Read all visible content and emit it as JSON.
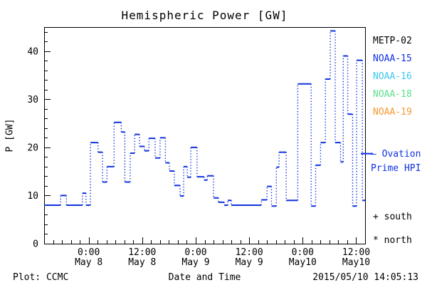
{
  "title": "Hemispheric Power [GW]",
  "y_axis_label": "P [GW]",
  "legend": {
    "items": [
      {
        "label": "METP-02",
        "color": "#000000"
      },
      {
        "label": "NOAA-15",
        "color": "#1032e0"
      },
      {
        "label": "NOAA-16",
        "color": "#3cc8f0"
      },
      {
        "label": "NOAA-18",
        "color": "#5ce08c"
      },
      {
        "label": "NOAA-19",
        "color": "#f89830"
      }
    ]
  },
  "annotations": {
    "ovation_line1": "— Ovation",
    "ovation_line2": "Prime HPI",
    "south_marker": "+ south",
    "north_marker": "* north"
  },
  "footer": {
    "left": "Plot: CCMC",
    "center_xlabel": "Date and Time",
    "timestamp": "2015/05/10 14:05:13"
  },
  "chart_data": {
    "type": "line",
    "style": "stairstep, solid horizontal segments with dotted vertical connectors",
    "title": "Hemispheric Power [GW]",
    "xlabel": "Date and Time",
    "ylabel": "P [GW]",
    "ylim": [
      0,
      45
    ],
    "y_major_tick_step": 10,
    "y_minor_tick_step": 2,
    "y_major_tick_values": [
      0,
      10,
      20,
      30,
      40
    ],
    "x_range_hours": [
      0,
      72
    ],
    "x_minor_tick_step_hours": 2,
    "x_major_ticks": [
      {
        "t": 10,
        "time": "0:00",
        "date": "May 8"
      },
      {
        "t": 22,
        "time": "12:00",
        "date": "May 8"
      },
      {
        "t": 34,
        "time": "0:00",
        "date": "May 9"
      },
      {
        "t": 46,
        "time": "12:00",
        "date": "May 9"
      },
      {
        "t": 58,
        "time": "0:00",
        "date": "May10"
      },
      {
        "t": 70,
        "time": "12:00",
        "date": "May10"
      }
    ],
    "grid": false,
    "legend_position": "right",
    "series": [
      {
        "name": "NOAA-15",
        "color": "#1032e0",
        "end_t_hours": 72,
        "steps_t_hours_value_gw": [
          [
            0,
            8
          ],
          [
            3.7,
            10
          ],
          [
            5.0,
            8
          ],
          [
            8.6,
            10.5
          ],
          [
            9.4,
            8
          ],
          [
            10.4,
            21
          ],
          [
            12.1,
            19
          ],
          [
            13.1,
            12.8
          ],
          [
            14.1,
            16
          ],
          [
            15.7,
            25.2
          ],
          [
            17.3,
            23.2
          ],
          [
            18.1,
            12.8
          ],
          [
            19.3,
            18.8
          ],
          [
            20.3,
            22.7
          ],
          [
            21.4,
            20.2
          ],
          [
            22.5,
            19.3
          ],
          [
            23.5,
            21.9
          ],
          [
            24.9,
            17.8
          ],
          [
            26.0,
            22.0
          ],
          [
            27.2,
            16.8
          ],
          [
            28.1,
            15.1
          ],
          [
            29.2,
            12.1
          ],
          [
            30.5,
            9.9
          ],
          [
            31.3,
            16.0
          ],
          [
            32.1,
            13.8
          ],
          [
            32.9,
            20.0
          ],
          [
            34.3,
            13.9
          ],
          [
            35.9,
            13.2
          ],
          [
            36.6,
            14.1
          ],
          [
            38.0,
            9.5
          ],
          [
            39.1,
            8.6
          ],
          [
            40.4,
            8.0
          ],
          [
            41.2,
            9.0
          ],
          [
            42.0,
            8.0
          ],
          [
            48.7,
            9.1
          ],
          [
            50.0,
            11.9
          ],
          [
            51.0,
            7.8
          ],
          [
            52.1,
            15.9
          ],
          [
            52.7,
            19.0
          ],
          [
            54.3,
            9.0
          ],
          [
            56.9,
            33.2
          ],
          [
            59.9,
            7.8
          ],
          [
            60.9,
            16.3
          ],
          [
            62.0,
            21.0
          ],
          [
            63.1,
            34.2
          ],
          [
            64.2,
            44.2
          ],
          [
            65.3,
            21.0
          ],
          [
            66.5,
            17.0
          ],
          [
            67.1,
            39.0
          ],
          [
            68.1,
            26.9
          ],
          [
            69.2,
            7.8
          ],
          [
            70.1,
            38.1
          ],
          [
            71.4,
            9.0
          ]
        ]
      }
    ],
    "ovation_prime_hpi_marker": {
      "t_hours": 72,
      "value_gw": 18.7,
      "color": "#1032e0"
    }
  }
}
